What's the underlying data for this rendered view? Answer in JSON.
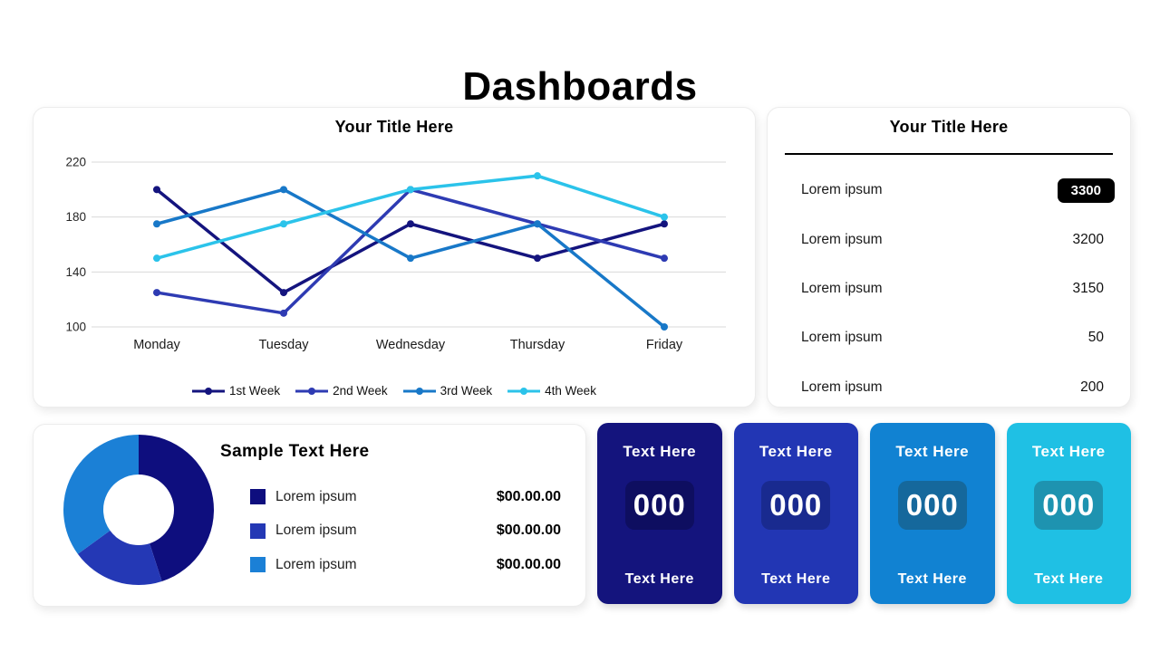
{
  "page": {
    "title": "Dashboards"
  },
  "chart_data": [
    {
      "type": "line",
      "title": "Your Title Here",
      "categories": [
        "Monday",
        "Tuesday",
        "Wednesday",
        "Thursday",
        "Friday"
      ],
      "series": [
        {
          "name": "1st Week",
          "color": "#14147E",
          "values": [
            200,
            125,
            175,
            150,
            175
          ]
        },
        {
          "name": "2nd Week",
          "color": "#2E3BB3",
          "values": [
            125,
            110,
            200,
            175,
            150
          ]
        },
        {
          "name": "3rd Week",
          "color": "#1878C8",
          "values": [
            175,
            200,
            150,
            175,
            100
          ]
        },
        {
          "name": "4th Week",
          "color": "#2BC3EA",
          "values": [
            150,
            175,
            200,
            210,
            180
          ]
        }
      ],
      "yticks": [
        220,
        180,
        140,
        100
      ],
      "ylim": [
        100,
        220
      ],
      "grid": "horizontal",
      "legend_position": "bottom"
    },
    {
      "type": "pie",
      "donut": true,
      "title": "Sample Text Here",
      "slices": [
        {
          "label": "Lorem ipsum",
          "value": 45,
          "color": "#0E0E7E",
          "amount": "$00.00.00"
        },
        {
          "label": "Lorem ipsum",
          "value": 20,
          "color": "#2438B5",
          "amount": "$00.00.00"
        },
        {
          "label": "Lorem ipsum",
          "value": 35,
          "color": "#1B80D6",
          "amount": "$00.00.00"
        }
      ]
    }
  ],
  "stats_list": {
    "title": "Your Title Here",
    "rows": [
      {
        "label": "Lorem ipsum",
        "value": "3300",
        "highlight": true
      },
      {
        "label": "Lorem ipsum",
        "value": "3200",
        "highlight": false
      },
      {
        "label": "Lorem ipsum",
        "value": "3150",
        "highlight": false
      },
      {
        "label": "Lorem ipsum",
        "value": "50",
        "highlight": false
      },
      {
        "label": "Lorem ipsum",
        "value": "200",
        "highlight": false
      }
    ]
  },
  "kpi_cards": [
    {
      "top_label": "Text Here",
      "value": "000",
      "bottom_label": "Text Here",
      "bg_color": "#14147D",
      "box_color": "#0E0E60"
    },
    {
      "top_label": "Text Here",
      "value": "000",
      "bottom_label": "Text Here",
      "bg_color": "#2236B4",
      "box_color": "#192A8F"
    },
    {
      "top_label": "Text Here",
      "value": "000",
      "bottom_label": "Text Here",
      "bg_color": "#1182D2",
      "box_color": "#15689C"
    },
    {
      "top_label": "Text Here",
      "value": "000",
      "bottom_label": "Text Here",
      "bg_color": "#1FC0E4",
      "box_color": "#1E93B0"
    }
  ]
}
